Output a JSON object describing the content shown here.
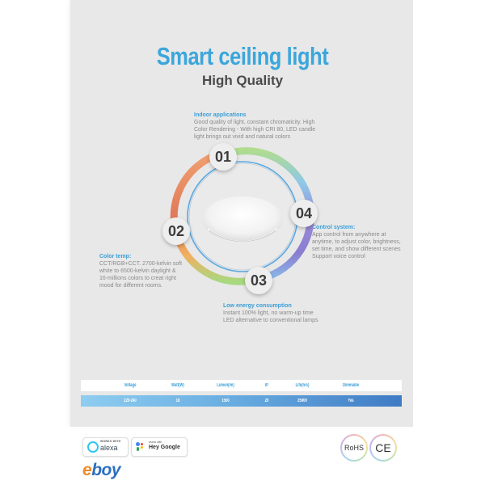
{
  "header": {
    "title": "Smart ceiling light",
    "subtitle": "High Quality"
  },
  "features": [
    {
      "number": "01",
      "heading": "Indoor applications",
      "lines": [
        "Good quality of light, constant chromaticity. High",
        "Color Rendering - With high CRI 80, LED candle",
        "light brings out vivid and natural colors"
      ]
    },
    {
      "number": "02",
      "heading": "Color temp:",
      "lines": [
        "CCT/RGB+CCT. 2700-kelvin soft",
        "white to 6500-kelvin daylight &",
        "16-millions colors to creat right",
        "mood for different rooms."
      ]
    },
    {
      "number": "03",
      "heading": "Low energy consumption",
      "lines": [
        "Instant 100% light, no warm-up time",
        "LED alternative to conventional lamps"
      ]
    },
    {
      "number": "04",
      "heading": "Control system:",
      "lines": [
        "App control from anywhere at",
        "anytime, to adjust color, brightness,",
        "set time, and show different scenes",
        "Support voice control"
      ]
    }
  ],
  "specs": {
    "headers": [
      "Voltage",
      "Watt(W)",
      "Lumen(lm)",
      "IP",
      "Life(hrs)",
      "Dimmable"
    ],
    "values": [
      "220-240",
      "18",
      "1500",
      "20",
      "25000",
      "Yes"
    ]
  },
  "footer": {
    "alexa": {
      "small": "WORKS WITH",
      "big": "alexa"
    },
    "google": {
      "small": "works with",
      "big": "Hey Google"
    },
    "brand": "eboy",
    "certs": [
      "RoHS",
      "CE"
    ]
  },
  "colors": {
    "accent": "#3ba6dc",
    "panel_bg": "#e8e8e8",
    "table_gradient_start": "#8fcdf0",
    "table_gradient_end": "#3f7bc4",
    "brand_orange": "#f08a2a",
    "brand_blue": "#2b6fc0"
  }
}
